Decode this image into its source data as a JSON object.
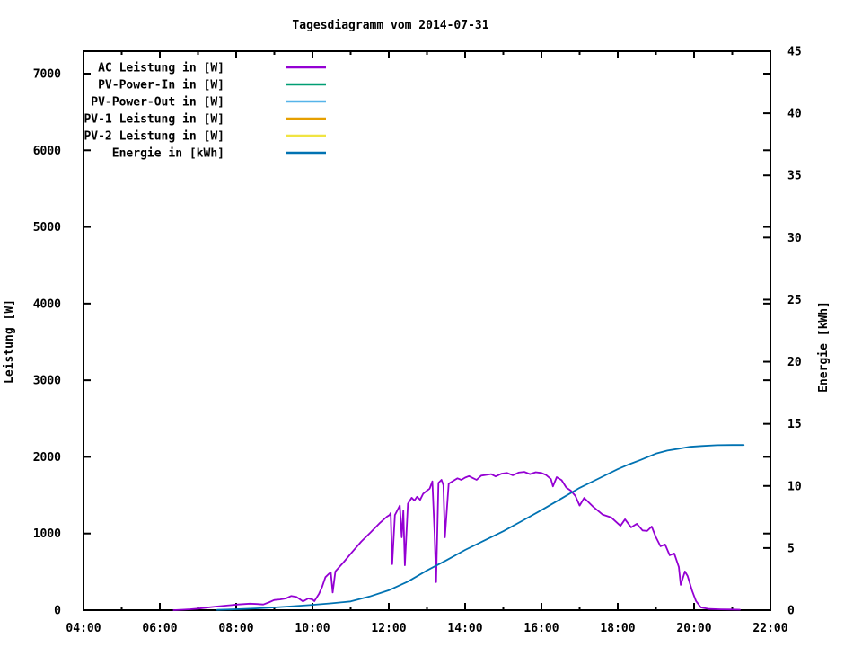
{
  "title": "Tagesdiagramm vom 2014-07-31",
  "colors": {
    "background": "#ffffff",
    "frame": "#000000",
    "text": "#000000",
    "ac_power": "#9400D3",
    "pv_power_in": "#009E73",
    "pv_power_out": "#56B4E9",
    "pv1_power": "#E69F00",
    "pv2_power": "#F0E442",
    "energy": "#0072B2"
  },
  "chart_data": {
    "type": "line",
    "title": "Tagesdiagramm vom 2014-07-31",
    "grid": false,
    "legend_position": "inside-top-left",
    "x_axis": {
      "range_hours": [
        4,
        22
      ],
      "major_ticks": [
        {
          "hour": 4,
          "label": "04:00"
        },
        {
          "hour": 6,
          "label": "06:00"
        },
        {
          "hour": 8,
          "label": "08:00"
        },
        {
          "hour": 10,
          "label": "10:00"
        },
        {
          "hour": 12,
          "label": "12:00"
        },
        {
          "hour": 14,
          "label": "14:00"
        },
        {
          "hour": 16,
          "label": "16:00"
        },
        {
          "hour": 18,
          "label": "18:00"
        },
        {
          "hour": 20,
          "label": "20:00"
        },
        {
          "hour": 22,
          "label": "22:00"
        }
      ],
      "minor_tick_hours": [
        5,
        7,
        9,
        11,
        13,
        15,
        17,
        19,
        21
      ]
    },
    "y_axis_left": {
      "label": "Leistung [W]",
      "range": [
        0,
        7300
      ],
      "ticks": [
        {
          "value": 0,
          "label": "0"
        },
        {
          "value": 1000,
          "label": "1000"
        },
        {
          "value": 2000,
          "label": "2000"
        },
        {
          "value": 3000,
          "label": "3000"
        },
        {
          "value": 4000,
          "label": "4000"
        },
        {
          "value": 5000,
          "label": "5000"
        },
        {
          "value": 6000,
          "label": "6000"
        },
        {
          "value": 7000,
          "label": "7000"
        }
      ]
    },
    "y_axis_right": {
      "label": "Energie [kWh]",
      "range": [
        0,
        45
      ],
      "ticks": [
        {
          "value": 0,
          "label": "0"
        },
        {
          "value": 5,
          "label": "5"
        },
        {
          "value": 10,
          "label": "10"
        },
        {
          "value": 15,
          "label": "15"
        },
        {
          "value": 20,
          "label": "20"
        },
        {
          "value": 25,
          "label": "25"
        },
        {
          "value": 30,
          "label": "30"
        },
        {
          "value": 35,
          "label": "35"
        },
        {
          "value": 40,
          "label": "40"
        },
        {
          "value": 45,
          "label": "45"
        }
      ]
    },
    "series": [
      {
        "name": "AC Leistung in [W]",
        "color": "#9400D3",
        "axis": "left",
        "points": [
          [
            6.36,
            0
          ],
          [
            6.6,
            6
          ],
          [
            6.8,
            12
          ],
          [
            7.0,
            20
          ],
          [
            7.2,
            32
          ],
          [
            7.45,
            46
          ],
          [
            7.75,
            60
          ],
          [
            8.05,
            74
          ],
          [
            8.36,
            85
          ],
          [
            8.55,
            80
          ],
          [
            8.71,
            74
          ],
          [
            8.85,
            100
          ],
          [
            9.0,
            133
          ],
          [
            9.15,
            140
          ],
          [
            9.3,
            153
          ],
          [
            9.44,
            184
          ],
          [
            9.58,
            172
          ],
          [
            9.75,
            114
          ],
          [
            9.89,
            152
          ],
          [
            10.0,
            140
          ],
          [
            10.05,
            117
          ],
          [
            10.17,
            211
          ],
          [
            10.25,
            300
          ],
          [
            10.34,
            430
          ],
          [
            10.42,
            470
          ],
          [
            10.48,
            493
          ],
          [
            10.53,
            230
          ],
          [
            10.6,
            505
          ],
          [
            10.81,
            622
          ],
          [
            11.04,
            759
          ],
          [
            11.28,
            896
          ],
          [
            11.52,
            1013
          ],
          [
            11.75,
            1130
          ],
          [
            11.95,
            1220
          ],
          [
            12.02,
            1240
          ],
          [
            12.05,
            1268
          ],
          [
            12.09,
            600
          ],
          [
            12.16,
            1240
          ],
          [
            12.29,
            1365
          ],
          [
            12.34,
            950
          ],
          [
            12.38,
            1300
          ],
          [
            12.42,
            585
          ],
          [
            12.5,
            1390
          ],
          [
            12.6,
            1467
          ],
          [
            12.67,
            1430
          ],
          [
            12.74,
            1480
          ],
          [
            12.82,
            1440
          ],
          [
            12.9,
            1520
          ],
          [
            13.0,
            1560
          ],
          [
            13.07,
            1585
          ],
          [
            13.14,
            1680
          ],
          [
            13.2,
            1000
          ],
          [
            13.24,
            365
          ],
          [
            13.3,
            1660
          ],
          [
            13.38,
            1700
          ],
          [
            13.43,
            1630
          ],
          [
            13.47,
            950
          ],
          [
            13.57,
            1650
          ],
          [
            13.7,
            1690
          ],
          [
            13.8,
            1720
          ],
          [
            13.9,
            1700
          ],
          [
            14.0,
            1730
          ],
          [
            14.1,
            1750
          ],
          [
            14.2,
            1725
          ],
          [
            14.3,
            1700
          ],
          [
            14.42,
            1755
          ],
          [
            14.55,
            1765
          ],
          [
            14.68,
            1775
          ],
          [
            14.8,
            1745
          ],
          [
            14.95,
            1780
          ],
          [
            15.1,
            1790
          ],
          [
            15.25,
            1760
          ],
          [
            15.4,
            1795
          ],
          [
            15.55,
            1805
          ],
          [
            15.7,
            1775
          ],
          [
            15.85,
            1800
          ],
          [
            16.0,
            1790
          ],
          [
            16.12,
            1765
          ],
          [
            16.25,
            1710
          ],
          [
            16.3,
            1615
          ],
          [
            16.4,
            1735
          ],
          [
            16.53,
            1695
          ],
          [
            16.65,
            1600
          ],
          [
            16.77,
            1560
          ],
          [
            16.89,
            1490
          ],
          [
            17.0,
            1365
          ],
          [
            17.12,
            1464
          ],
          [
            17.36,
            1347
          ],
          [
            17.6,
            1248
          ],
          [
            17.83,
            1209
          ],
          [
            18.07,
            1100
          ],
          [
            18.19,
            1186
          ],
          [
            18.35,
            1080
          ],
          [
            18.5,
            1127
          ],
          [
            18.65,
            1040
          ],
          [
            18.77,
            1033
          ],
          [
            18.89,
            1090
          ],
          [
            19.0,
            951
          ],
          [
            19.12,
            834
          ],
          [
            19.24,
            857
          ],
          [
            19.36,
            716
          ],
          [
            19.48,
            740
          ],
          [
            19.6,
            564
          ],
          [
            19.65,
            330
          ],
          [
            19.76,
            505
          ],
          [
            19.83,
            445
          ],
          [
            19.95,
            250
          ],
          [
            20.05,
            120
          ],
          [
            20.18,
            35
          ],
          [
            20.4,
            15
          ],
          [
            20.7,
            10
          ],
          [
            21.0,
            8
          ],
          [
            21.2,
            6
          ]
        ]
      },
      {
        "name": "PV-Power-In in [W]",
        "color": "#009E73",
        "axis": "left",
        "points": []
      },
      {
        "name": "PV-Power-Out in [W]",
        "color": "#56B4E9",
        "axis": "left",
        "points": []
      },
      {
        "name": "PV-1 Leistung in [W]",
        "color": "#E69F00",
        "axis": "left",
        "points": []
      },
      {
        "name": "PV-2 Leistung in [W]",
        "color": "#F0E442",
        "axis": "left",
        "points": []
      },
      {
        "name": "Energie in [kWh]",
        "color": "#0072B2",
        "axis": "right",
        "points": [
          [
            7.5,
            0.02
          ],
          [
            8.0,
            0.07
          ],
          [
            8.5,
            0.14
          ],
          [
            9.0,
            0.22
          ],
          [
            9.5,
            0.32
          ],
          [
            10.0,
            0.43
          ],
          [
            10.5,
            0.55
          ],
          [
            11.0,
            0.7
          ],
          [
            11.5,
            1.1
          ],
          [
            12.0,
            1.6
          ],
          [
            12.5,
            2.3
          ],
          [
            13.0,
            3.2
          ],
          [
            13.5,
            4.0
          ],
          [
            14.0,
            4.85
          ],
          [
            14.5,
            5.6
          ],
          [
            15.0,
            6.35
          ],
          [
            15.5,
            7.2
          ],
          [
            16.0,
            8.05
          ],
          [
            16.5,
            8.95
          ],
          [
            17.0,
            9.85
          ],
          [
            17.5,
            10.6
          ],
          [
            18.0,
            11.35
          ],
          [
            18.3,
            11.75
          ],
          [
            18.6,
            12.1
          ],
          [
            19.0,
            12.6
          ],
          [
            19.3,
            12.85
          ],
          [
            19.6,
            13.0
          ],
          [
            19.9,
            13.15
          ],
          [
            20.2,
            13.22
          ],
          [
            20.6,
            13.28
          ],
          [
            21.0,
            13.3
          ],
          [
            21.3,
            13.3
          ]
        ]
      }
    ]
  }
}
